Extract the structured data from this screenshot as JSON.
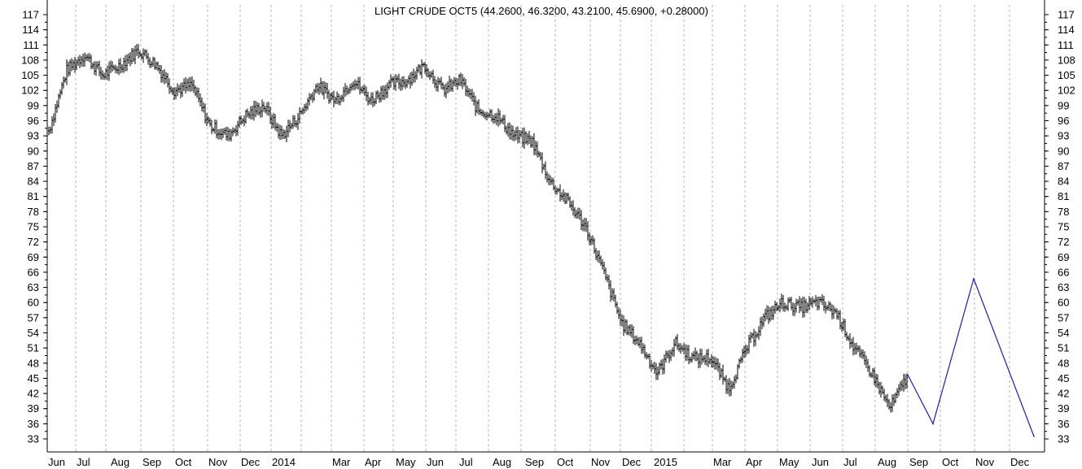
{
  "chart_data": {
    "type": "ohlc",
    "title": "LIGHT CRUDE OCT5 (44.2600, 46.3200, 43.2100, 45.6900, +0.28000)",
    "xlabel": "",
    "ylabel": "",
    "ylim": [
      31.5,
      118.5
    ],
    "y_ticks": [
      33,
      36,
      39,
      42,
      45,
      48,
      51,
      54,
      57,
      60,
      63,
      66,
      69,
      72,
      75,
      78,
      81,
      84,
      87,
      90,
      93,
      96,
      99,
      102,
      105,
      108,
      111,
      114,
      117
    ],
    "x_tick_labels": [
      "Jun",
      "Jul",
      "Aug",
      "Sep",
      "Oct",
      "Nov",
      "Dec",
      "2014",
      "Mar",
      "Apr",
      "May",
      "Jun",
      "Jul",
      "Aug",
      "Sep",
      "Oct",
      "Nov",
      "Dec",
      "2015",
      "Mar",
      "Apr",
      "May",
      "Jun",
      "Jul",
      "Aug",
      "Sep",
      "Oct",
      "Nov",
      "Dec"
    ],
    "grid": {
      "vertical": true,
      "style": "dashed",
      "horizontal": false
    },
    "axes": "left-and-right",
    "colors": {
      "bars": "#000000",
      "projection": "#1a1acc",
      "grid": "#b4b4b4"
    },
    "price_path": [
      {
        "x": "Jun",
        "close": 94
      },
      {
        "x": "Jul",
        "close": 106
      },
      {
        "x": "Jul",
        "close": 109
      },
      {
        "x": "Aug",
        "close": 105
      },
      {
        "x": "Aug",
        "close": 107
      },
      {
        "x": "Sep",
        "close": 110
      },
      {
        "x": "Sep",
        "close": 107
      },
      {
        "x": "Oct",
        "close": 102
      },
      {
        "x": "Oct",
        "close": 103
      },
      {
        "x": "Nov",
        "close": 95
      },
      {
        "x": "Nov",
        "close": 93
      },
      {
        "x": "Dec",
        "close": 97
      },
      {
        "x": "Dec",
        "close": 99
      },
      {
        "x": "2014",
        "close": 93
      },
      {
        "x": "2014",
        "close": 97
      },
      {
        "x": "Mar",
        "close": 103
      },
      {
        "x": "Mar",
        "close": 100
      },
      {
        "x": "Apr",
        "close": 104
      },
      {
        "x": "May",
        "close": 100
      },
      {
        "x": "May",
        "close": 103
      },
      {
        "x": "Jun",
        "close": 104
      },
      {
        "x": "Jun",
        "close": 107
      },
      {
        "x": "Jul",
        "close": 102
      },
      {
        "x": "Jul",
        "close": 104
      },
      {
        "x": "Aug",
        "close": 98
      },
      {
        "x": "Aug",
        "close": 97
      },
      {
        "x": "Sep",
        "close": 93
      },
      {
        "x": "Oct",
        "close": 92
      },
      {
        "x": "Oct",
        "close": 84
      },
      {
        "x": "Nov",
        "close": 80
      },
      {
        "x": "Nov",
        "close": 75
      },
      {
        "x": "Dec",
        "close": 66
      },
      {
        "x": "Dec",
        "close": 56
      },
      {
        "x": "Dec",
        "close": 52
      },
      {
        "x": "2015",
        "close": 46
      },
      {
        "x": "2015",
        "close": 52
      },
      {
        "x": "2015",
        "close": 49
      },
      {
        "x": "Mar",
        "close": 49
      },
      {
        "x": "Mar",
        "close": 43
      },
      {
        "x": "Apr",
        "close": 51
      },
      {
        "x": "Apr",
        "close": 57
      },
      {
        "x": "May",
        "close": 60
      },
      {
        "x": "May",
        "close": 59
      },
      {
        "x": "Jun",
        "close": 60
      },
      {
        "x": "Jul",
        "close": 58
      },
      {
        "x": "Jul",
        "close": 51
      },
      {
        "x": "Aug",
        "close": 46
      },
      {
        "x": "Aug",
        "close": 39
      },
      {
        "x": "Aug",
        "close": 45.69
      }
    ],
    "projection": {
      "series": "forecast",
      "points": [
        {
          "x": "Aug",
          "y": 45.69
        },
        {
          "x": "Sep",
          "y": 36
        },
        {
          "x": "Oct",
          "y": 64.7
        },
        {
          "x": "Dec",
          "y": 33.5
        }
      ]
    }
  }
}
